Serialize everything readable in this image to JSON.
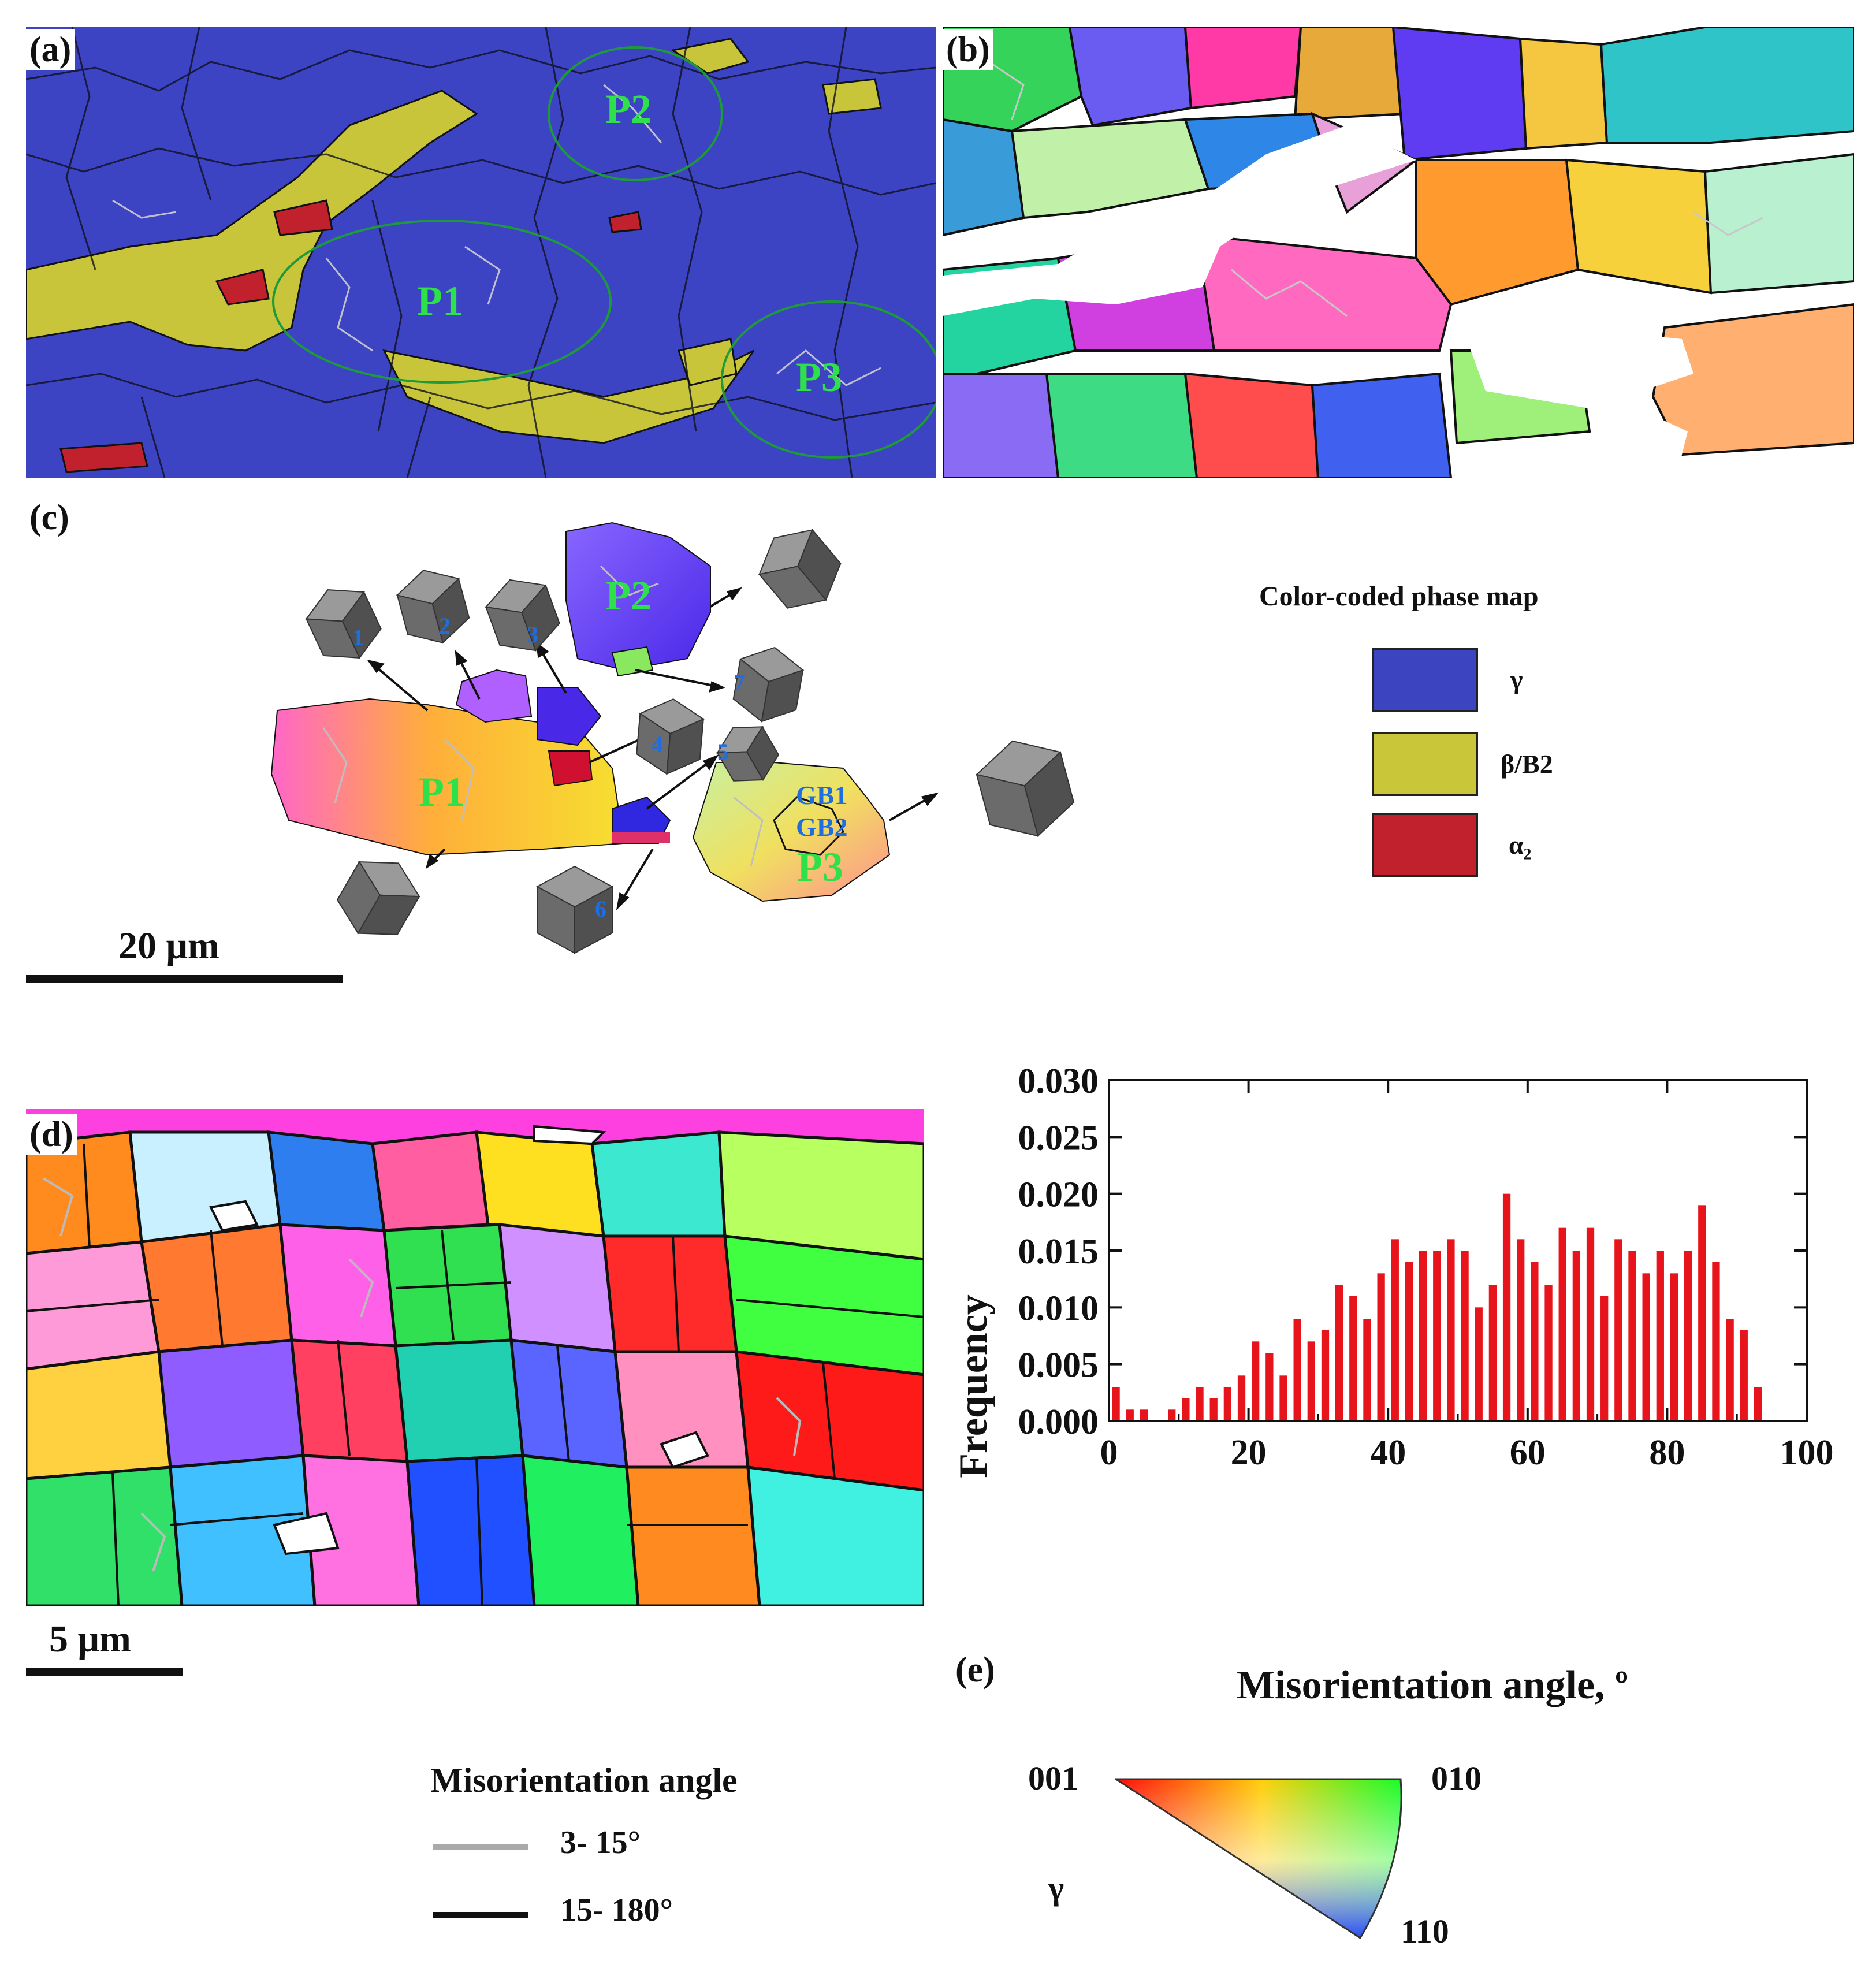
{
  "panels": {
    "a": {
      "label": "(a)",
      "regions": [
        "P2",
        "P1",
        "P3"
      ]
    },
    "b": {
      "label": "(b)"
    },
    "c": {
      "label": "(c)",
      "regions": [
        "P2",
        "P1",
        "P3"
      ],
      "cube_numbers": [
        "1",
        "2",
        "3",
        "4",
        "5",
        "6",
        "7"
      ],
      "boundary_labels": [
        "GB1",
        "GB2"
      ],
      "scalebar_label": "20 μm"
    },
    "d": {
      "label": "(d)",
      "scalebar_label": "5 μm"
    },
    "e": {
      "label": "(e)"
    }
  },
  "phase_legend": {
    "title": "Color-coded  phase map",
    "items": [
      {
        "name": "γ",
        "color": "#3c44c0"
      },
      {
        "name": "β/B2",
        "color": "#c9c63a"
      },
      {
        "name": "α₂",
        "color": "#c0212d"
      }
    ]
  },
  "misorientation_legend": {
    "title": "Misorientation  angle",
    "items": [
      {
        "label": "3- 15°",
        "color": "#aaaaaa"
      },
      {
        "label": "15- 180°",
        "color": "#111111"
      }
    ]
  },
  "ipf_legend": {
    "corner_001": "001",
    "corner_010": "010",
    "corner_110": "110",
    "phase": "γ"
  },
  "chart_data": {
    "type": "bar",
    "xlabel": "Misorientation angle, º",
    "ylabel": "Frequency",
    "xlim": [
      0,
      100
    ],
    "ylim": [
      0,
      0.03
    ],
    "xticks": [
      "0",
      "20",
      "40",
      "60",
      "80",
      "100"
    ],
    "yticks": [
      "0.000",
      "0.005",
      "0.010",
      "0.015",
      "0.020",
      "0.025",
      "0.030"
    ],
    "bar_color": "#e8141c",
    "x": [
      1,
      3,
      5,
      7,
      9,
      11,
      13,
      15,
      17,
      19,
      21,
      23,
      25,
      27,
      29,
      31,
      33,
      35,
      37,
      39,
      41,
      43,
      45,
      47,
      49,
      51,
      53,
      55,
      57,
      59,
      61,
      63,
      65,
      67,
      69,
      71,
      73,
      75,
      77,
      79,
      81,
      83,
      85,
      87,
      89,
      91,
      93,
      95
    ],
    "values": [
      0.003,
      0.001,
      0.001,
      0.0,
      0.001,
      0.002,
      0.003,
      0.002,
      0.003,
      0.004,
      0.007,
      0.006,
      0.004,
      0.009,
      0.007,
      0.008,
      0.012,
      0.011,
      0.009,
      0.013,
      0.016,
      0.014,
      0.015,
      0.015,
      0.016,
      0.015,
      0.01,
      0.012,
      0.02,
      0.016,
      0.014,
      0.012,
      0.017,
      0.015,
      0.017,
      0.011,
      0.016,
      0.015,
      0.013,
      0.015,
      0.013,
      0.015,
      0.019,
      0.014,
      0.009,
      0.008,
      0.003,
      0.0
    ]
  }
}
